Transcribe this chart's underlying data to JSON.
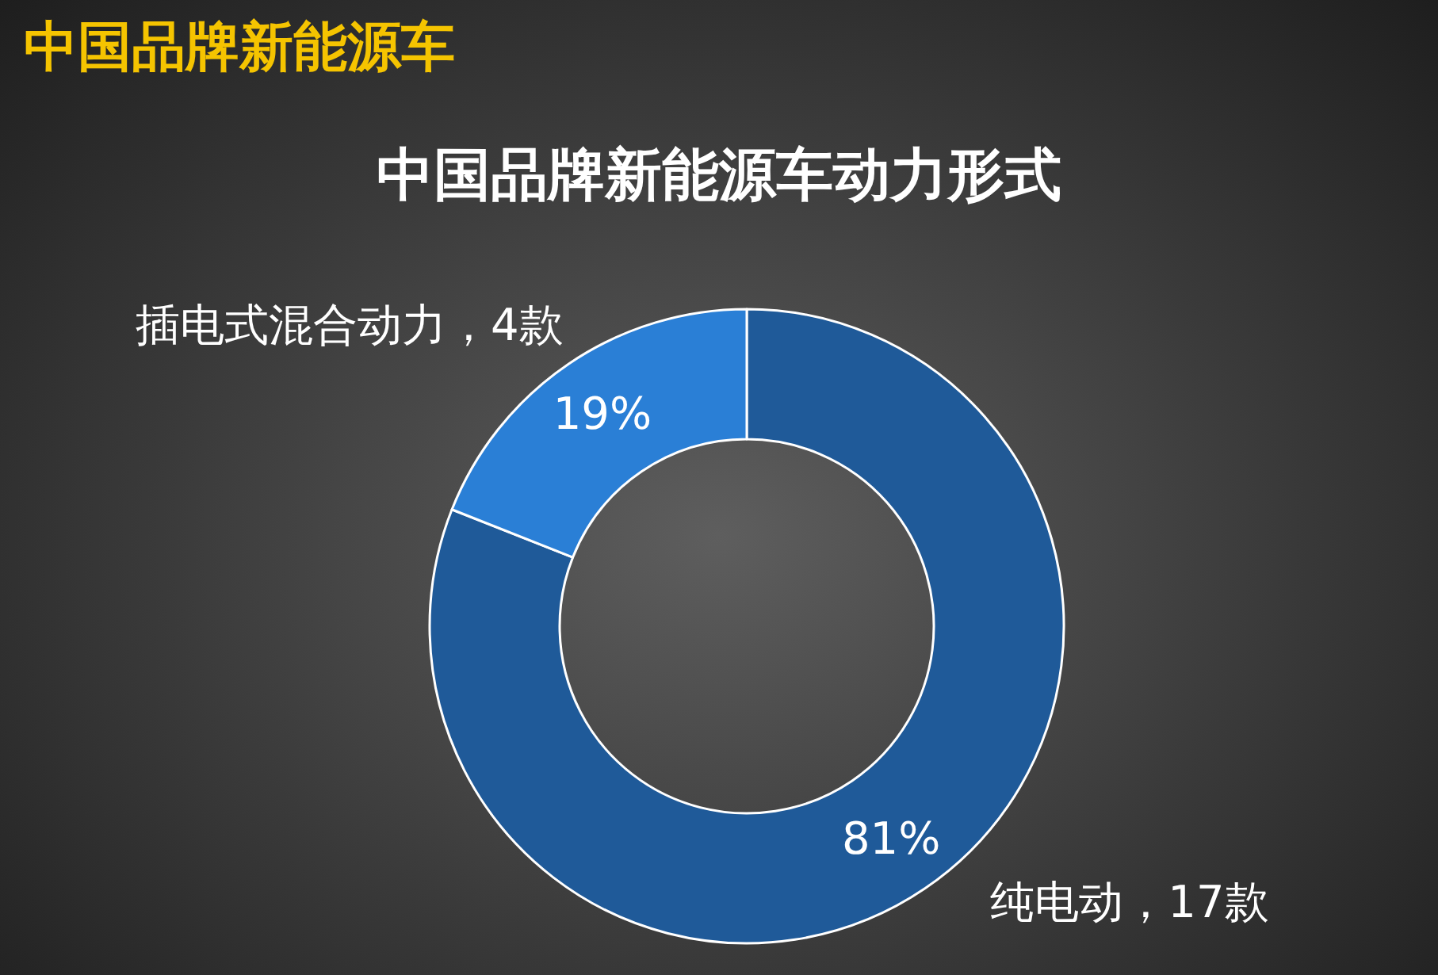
{
  "chart_data": {
    "type": "donut",
    "title": "中国品牌新能源车",
    "subtitle": "中国品牌新能源车动力形式",
    "categories": [
      "纯电动，17款",
      "插电式混合动力，4款"
    ],
    "values": [
      81,
      19
    ],
    "value_labels": [
      "81%",
      "19%"
    ],
    "colors": [
      "#1f5a99",
      "#2a7fd6"
    ],
    "legend": false
  }
}
